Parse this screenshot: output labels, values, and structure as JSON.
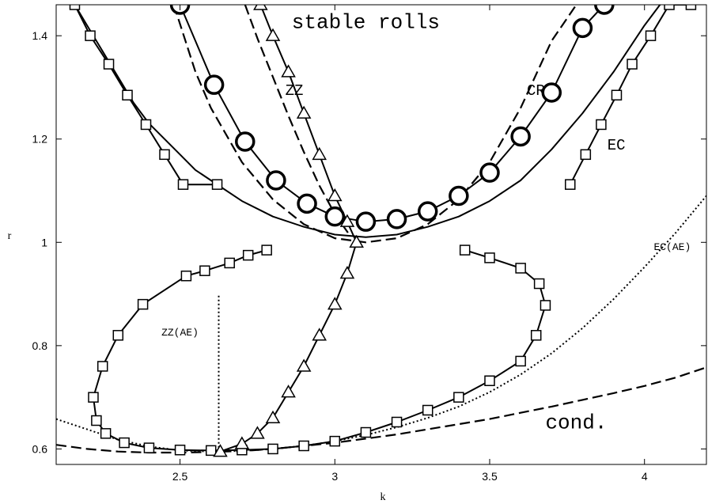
{
  "chart_data": {
    "type": "line",
    "title": "",
    "xlabel": "k",
    "ylabel": "r",
    "xlim": [
      2.1,
      4.2
    ],
    "ylim": [
      0.57,
      1.46
    ],
    "grid": false,
    "x_ticks": [
      {
        "value": 2.5,
        "label": "2.5"
      },
      {
        "value": 3,
        "label": "3"
      },
      {
        "value": 3.5,
        "label": "3.5"
      },
      {
        "value": 4,
        "label": "4"
      }
    ],
    "y_ticks": [
      {
        "value": 0.6,
        "label": "0.6"
      },
      {
        "value": 0.8,
        "label": "0.8"
      },
      {
        "value": 1,
        "label": "1"
      },
      {
        "value": 1.2,
        "label": "1.2"
      },
      {
        "value": 1.4,
        "label": "1.4"
      }
    ],
    "annotations": [
      {
        "text": "stable rolls",
        "x": 3.1,
        "y": 1.415,
        "size": "big",
        "anchor": "middle"
      },
      {
        "text": "ZZ",
        "x": 2.84,
        "y": 1.285,
        "size": "med",
        "anchor": "start"
      },
      {
        "text": "CR",
        "x": 3.62,
        "y": 1.285,
        "size": "med",
        "anchor": "start"
      },
      {
        "text": "EC",
        "x": 3.88,
        "y": 1.18,
        "size": "med",
        "anchor": "start"
      },
      {
        "text": "ZZ(AE)",
        "x": 2.44,
        "y": 0.82,
        "size": "small",
        "anchor": "start"
      },
      {
        "text": "EC(AE)",
        "x": 4.03,
        "y": 0.985,
        "size": "small",
        "anchor": "start"
      },
      {
        "text": "cond.",
        "x": 3.68,
        "y": 0.64,
        "size": "big",
        "anchor": "start"
      }
    ],
    "series": [
      {
        "style": "dashed",
        "marker": "none",
        "role": "neutral curve",
        "x": [
          2.1,
          2.2,
          2.3,
          2.4,
          2.5,
          2.6,
          2.7,
          2.8,
          2.9,
          3.0,
          3.1,
          3.2,
          3.3,
          3.4,
          3.5,
          3.6,
          3.7,
          3.8,
          3.9,
          4.0,
          4.1,
          4.2
        ],
        "y": [
          0.608,
          0.6,
          0.595,
          0.593,
          0.593,
          0.594,
          0.596,
          0.6,
          0.606,
          0.612,
          0.62,
          0.628,
          0.638,
          0.648,
          0.658,
          0.67,
          0.682,
          0.695,
          0.708,
          0.722,
          0.738,
          0.758
        ]
      },
      {
        "style": "dotted",
        "marker": "none",
        "role": "EC(AE)",
        "x": [
          2.1,
          2.2,
          2.3,
          2.4,
          2.5,
          2.6,
          2.7,
          2.8,
          2.9,
          3.0,
          3.1,
          3.2,
          3.3,
          3.4,
          3.5,
          3.6,
          3.7,
          3.8,
          3.9,
          4.0,
          4.1,
          4.2
        ],
        "y": [
          0.658,
          0.638,
          0.618,
          0.605,
          0.597,
          0.595,
          0.596,
          0.6,
          0.606,
          0.615,
          0.627,
          0.642,
          0.66,
          0.682,
          0.71,
          0.744,
          0.785,
          0.834,
          0.89,
          0.952,
          1.018,
          1.09
        ]
      },
      {
        "style": "dotted",
        "marker": "none",
        "role": "ZZ(AE)",
        "x": [
          2.625,
          2.625
        ],
        "y": [
          0.595,
          0.9
        ]
      },
      {
        "style": "dashed",
        "marker": "none",
        "role": "ZZ approx",
        "x": [
          2.71,
          2.75,
          2.8,
          2.85,
          2.9,
          2.95,
          3.0,
          3.05
        ],
        "y": [
          1.46,
          1.395,
          1.32,
          1.245,
          1.175,
          1.11,
          1.055,
          1.012
        ]
      },
      {
        "style": "dashed",
        "marker": "none",
        "role": "neutral curve upper",
        "x": [
          2.48,
          2.55,
          2.6,
          2.7,
          2.8,
          2.9,
          3.0,
          3.1,
          3.2,
          3.3,
          3.4,
          3.5,
          3.6,
          3.7,
          3.78
        ],
        "y": [
          1.46,
          1.33,
          1.26,
          1.155,
          1.083,
          1.035,
          1.008,
          1.0,
          1.008,
          1.035,
          1.083,
          1.155,
          1.26,
          1.39,
          1.46
        ]
      },
      {
        "style": "solid",
        "marker": "none",
        "role": "Eckhaus",
        "x": [
          2.16,
          2.2,
          2.25,
          2.3,
          2.35,
          2.4,
          2.45,
          2.5,
          2.55,
          2.6,
          2.7,
          2.8,
          2.9,
          3.0,
          3.1,
          3.2,
          3.3,
          3.4,
          3.5,
          3.6,
          3.7,
          3.8,
          3.9,
          4.0,
          4.05
        ],
        "y": [
          1.46,
          1.42,
          1.37,
          1.32,
          1.27,
          1.23,
          1.2,
          1.17,
          1.14,
          1.12,
          1.08,
          1.05,
          1.03,
          1.015,
          1.01,
          1.015,
          1.03,
          1.05,
          1.08,
          1.12,
          1.18,
          1.25,
          1.33,
          1.42,
          1.46
        ]
      },
      {
        "style": "solid",
        "marker": "square",
        "role": "EC upper left",
        "x": [
          2.16,
          2.21,
          2.27,
          2.33,
          2.39,
          2.45,
          2.51,
          2.62
        ],
        "y": [
          1.46,
          1.4,
          1.345,
          1.285,
          1.228,
          1.17,
          1.112,
          1.112
        ]
      },
      {
        "style": "solid",
        "marker": "square",
        "role": "EC upper right",
        "x": [
          3.76,
          3.81,
          3.86,
          3.91,
          3.96,
          4.02,
          4.08,
          4.15
        ],
        "y": [
          1.112,
          1.17,
          1.228,
          1.285,
          1.345,
          1.4,
          1.46,
          1.46
        ]
      },
      {
        "style": "solid",
        "marker": "square",
        "role": "EC loop",
        "x": [
          2.78,
          2.72,
          2.66,
          2.58,
          2.52,
          2.38,
          2.3,
          2.25,
          2.22,
          2.23,
          2.26,
          2.32,
          2.4,
          2.5,
          2.6,
          2.7,
          2.8,
          2.9,
          3.0,
          3.1,
          3.2,
          3.3,
          3.4,
          3.5,
          3.6,
          3.65,
          3.68,
          3.66,
          3.6,
          3.5,
          3.42
        ],
        "y": [
          0.985,
          0.975,
          0.96,
          0.945,
          0.935,
          0.88,
          0.82,
          0.76,
          0.7,
          0.655,
          0.63,
          0.612,
          0.602,
          0.598,
          0.597,
          0.598,
          0.6,
          0.606,
          0.615,
          0.632,
          0.652,
          0.675,
          0.7,
          0.732,
          0.77,
          0.82,
          0.878,
          0.92,
          0.95,
          0.97,
          0.985
        ]
      },
      {
        "style": "solid",
        "marker": "triangle",
        "role": "ZZ",
        "x": [
          2.76,
          2.8,
          2.85,
          2.9,
          2.95,
          3.0,
          3.04,
          3.07,
          3.04,
          3.0,
          2.95,
          2.9,
          2.85,
          2.8,
          2.75,
          2.7,
          2.63
        ],
        "y": [
          1.46,
          1.4,
          1.33,
          1.25,
          1.17,
          1.09,
          1.04,
          1.0,
          0.94,
          0.88,
          0.82,
          0.76,
          0.71,
          0.66,
          0.63,
          0.61,
          0.595
        ]
      },
      {
        "style": "solid",
        "marker": "circle",
        "role": "CR",
        "x": [
          2.5,
          2.61,
          2.71,
          2.81,
          2.91,
          3.0,
          3.1,
          3.2,
          3.3,
          3.4,
          3.5,
          3.6,
          3.7,
          3.8,
          3.87
        ],
        "y": [
          1.46,
          1.305,
          1.195,
          1.12,
          1.075,
          1.05,
          1.04,
          1.045,
          1.06,
          1.09,
          1.135,
          1.205,
          1.29,
          1.415,
          1.46
        ]
      }
    ]
  }
}
